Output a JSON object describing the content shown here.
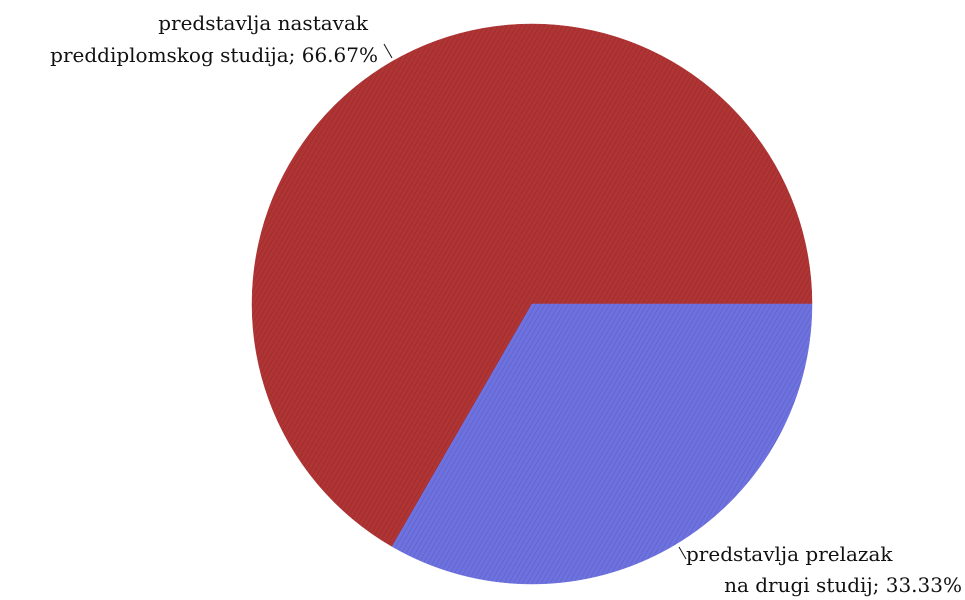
{
  "chart_data": {
    "type": "pie",
    "title": "",
    "slices": [
      {
        "value": 66.67,
        "color": "#b03434",
        "label_lines": [
          "predstavlja nastavak",
          "preddiplomskog studija; 66.67%"
        ]
      },
      {
        "value": 33.33,
        "color": "#6e72e0",
        "label_lines": [
          "predstavlja prelazak",
          "na drugi studij; 33.33%"
        ]
      }
    ]
  }
}
